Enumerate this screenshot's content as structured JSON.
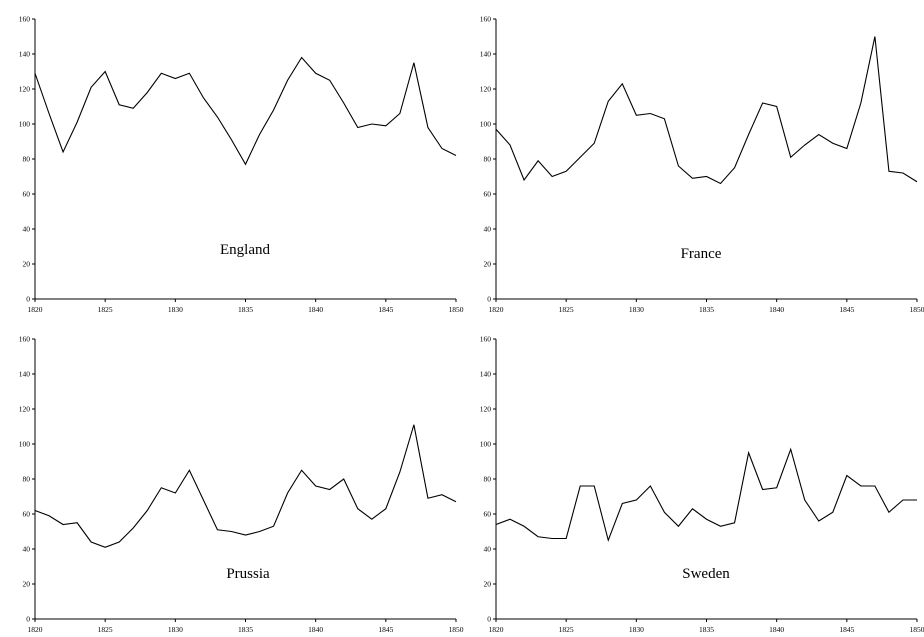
{
  "chart_data": [
    {
      "type": "line",
      "title": "England",
      "xlim": [
        1820,
        1850
      ],
      "ylim": [
        0,
        160
      ],
      "xticks": [
        1820,
        1825,
        1830,
        1835,
        1840,
        1845,
        1850
      ],
      "yticks": [
        0,
        20,
        40,
        60,
        80,
        100,
        120,
        140,
        160
      ],
      "x": [
        1820,
        1821,
        1822,
        1823,
        1824,
        1825,
        1826,
        1827,
        1828,
        1829,
        1830,
        1831,
        1832,
        1833,
        1834,
        1835,
        1836,
        1837,
        1838,
        1839,
        1840,
        1841,
        1842,
        1843,
        1844,
        1845,
        1846,
        1847,
        1848,
        1849,
        1850
      ],
      "values": [
        129,
        106,
        84,
        101,
        121,
        130,
        111,
        109,
        118,
        129,
        126,
        129,
        115,
        104,
        91,
        77,
        94,
        108,
        125,
        138,
        129,
        125,
        112,
        98,
        100,
        99,
        106,
        135,
        98,
        86,
        82
      ]
    },
    {
      "type": "line",
      "title": "France",
      "xlim": [
        1820,
        1850
      ],
      "ylim": [
        0,
        160
      ],
      "xticks": [
        1820,
        1825,
        1830,
        1835,
        1840,
        1845,
        1850
      ],
      "yticks": [
        0,
        20,
        40,
        60,
        80,
        100,
        120,
        140,
        160
      ],
      "x": [
        1820,
        1821,
        1822,
        1823,
        1824,
        1825,
        1826,
        1827,
        1828,
        1829,
        1830,
        1831,
        1832,
        1833,
        1834,
        1835,
        1836,
        1837,
        1838,
        1839,
        1840,
        1841,
        1842,
        1843,
        1844,
        1845,
        1846,
        1847,
        1848,
        1849,
        1850
      ],
      "values": [
        97,
        88,
        68,
        79,
        70,
        73,
        81,
        89,
        113,
        123,
        105,
        106,
        103,
        76,
        69,
        70,
        66,
        75,
        94,
        112,
        110,
        81,
        88,
        94,
        89,
        86,
        112,
        150,
        73,
        72,
        67
      ]
    },
    {
      "type": "line",
      "title": "Prussia",
      "xlim": [
        1820,
        1850
      ],
      "ylim": [
        0,
        160
      ],
      "xticks": [
        1820,
        1825,
        1830,
        1835,
        1840,
        1845,
        1850
      ],
      "yticks": [
        0,
        20,
        40,
        60,
        80,
        100,
        120,
        140,
        160
      ],
      "x": [
        1820,
        1821,
        1822,
        1823,
        1824,
        1825,
        1826,
        1827,
        1828,
        1829,
        1830,
        1831,
        1832,
        1833,
        1834,
        1835,
        1836,
        1837,
        1838,
        1839,
        1840,
        1841,
        1842,
        1843,
        1844,
        1845,
        1846,
        1847,
        1848,
        1849,
        1850
      ],
      "values": [
        62,
        59,
        54,
        55,
        44,
        41,
        44,
        52,
        62,
        75,
        72,
        85,
        68,
        51,
        50,
        48,
        50,
        53,
        72,
        85,
        76,
        74,
        80,
        63,
        57,
        63,
        84,
        111,
        69,
        71,
        67
      ]
    },
    {
      "type": "line",
      "title": "Sweden",
      "xlim": [
        1820,
        1850
      ],
      "ylim": [
        0,
        160
      ],
      "xticks": [
        1820,
        1825,
        1830,
        1835,
        1840,
        1845,
        1850
      ],
      "yticks": [
        0,
        20,
        40,
        60,
        80,
        100,
        120,
        140,
        160
      ],
      "x": [
        1820,
        1821,
        1822,
        1823,
        1824,
        1825,
        1826,
        1827,
        1828,
        1829,
        1830,
        1831,
        1832,
        1833,
        1834,
        1835,
        1836,
        1837,
        1838,
        1839,
        1840,
        1841,
        1842,
        1843,
        1844,
        1845,
        1846,
        1847,
        1848,
        1849,
        1850
      ],
      "values": [
        54,
        57,
        53,
        47,
        46,
        46,
        76,
        76,
        45,
        66,
        68,
        76,
        61,
        53,
        63,
        57,
        53,
        55,
        95,
        74,
        75,
        97,
        68,
        56,
        61,
        82,
        76,
        76,
        61,
        68,
        68
      ]
    }
  ]
}
